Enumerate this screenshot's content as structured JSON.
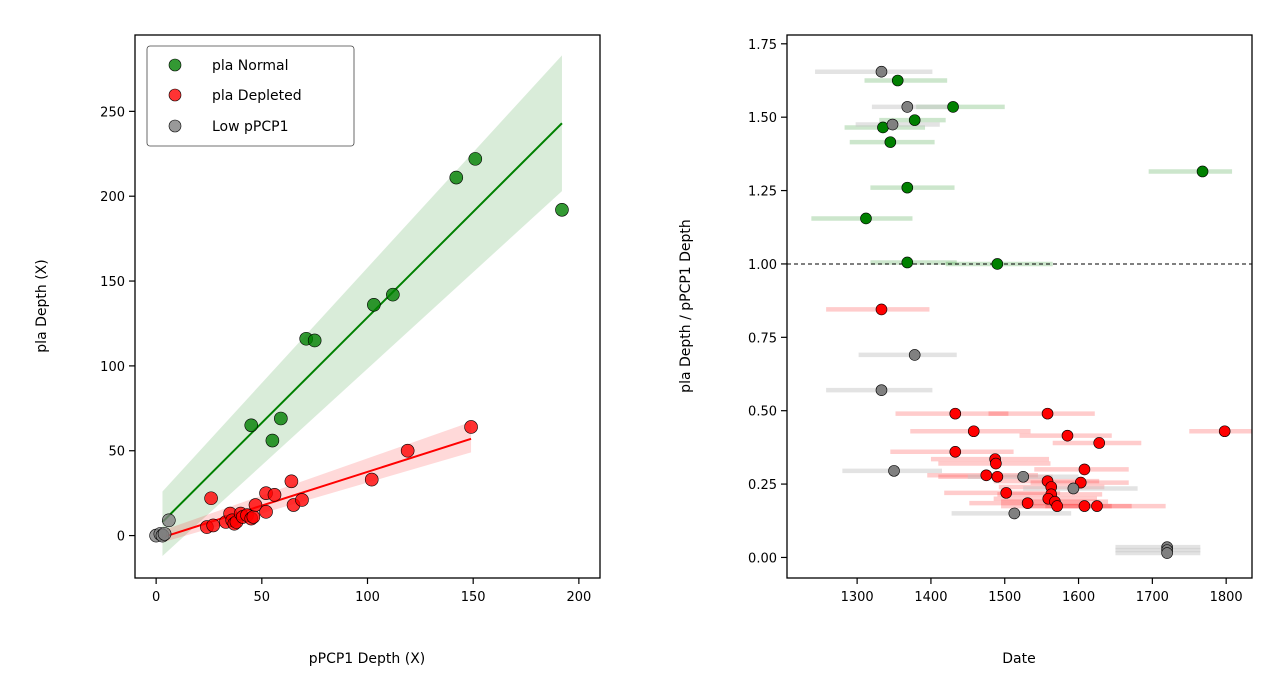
{
  "chart_data": [
    {
      "type": "scatter",
      "title": "",
      "xlabel": "pPCP1 Depth (X)",
      "ylabel": "pla Depth (X)",
      "xlim": [
        -10,
        210
      ],
      "ylim": [
        -25,
        295
      ],
      "xticks": [
        0,
        50,
        100,
        150,
        200
      ],
      "yticks": [
        0,
        50,
        100,
        150,
        200,
        250
      ],
      "grid": false,
      "legend": {
        "position": "top-left",
        "entries": [
          {
            "label": "pla Normal",
            "color": "#008000"
          },
          {
            "label": "pla Depleted",
            "color": "#ff0000"
          },
          {
            "label": "Low pPCP1",
            "color": "#808080"
          }
        ]
      },
      "series": [
        {
          "name": "pla Normal",
          "color": "#008000",
          "points": [
            [
              45,
              65
            ],
            [
              55,
              56
            ],
            [
              59,
              69
            ],
            [
              71,
              116
            ],
            [
              75,
              115
            ],
            [
              103,
              136
            ],
            [
              112,
              142
            ],
            [
              142,
              211
            ],
            [
              151,
              222
            ],
            [
              192,
              192
            ]
          ],
          "fit": {
            "x": [
              3,
              192
            ],
            "y": [
              8,
              243
            ],
            "ci_upper": [
              26,
              283
            ],
            "ci_lower": [
              -12,
              203
            ]
          }
        },
        {
          "name": "pla Depleted",
          "color": "#ff0000",
          "points": [
            [
              24,
              5
            ],
            [
              26,
              22
            ],
            [
              27,
              6
            ],
            [
              33,
              8
            ],
            [
              35,
              13
            ],
            [
              36,
              9
            ],
            [
              37,
              7
            ],
            [
              38,
              8
            ],
            [
              40,
              13
            ],
            [
              41,
              11
            ],
            [
              43,
              12
            ],
            [
              45,
              10
            ],
            [
              46,
              11
            ],
            [
              47,
              18
            ],
            [
              52,
              14
            ],
            [
              52,
              25
            ],
            [
              56,
              24
            ],
            [
              64,
              32
            ],
            [
              65,
              18
            ],
            [
              69,
              21
            ],
            [
              102,
              33
            ],
            [
              119,
              50
            ],
            [
              149,
              64
            ]
          ],
          "fit": {
            "x": [
              3,
              149
            ],
            "y": [
              -1,
              57
            ],
            "ci_upper": [
              3,
              67
            ],
            "ci_lower": [
              -4,
              49
            ]
          }
        },
        {
          "name": "Low pPCP1",
          "color": "#808080",
          "points": [
            [
              0,
              0
            ],
            [
              2,
              1
            ],
            [
              3,
              0
            ],
            [
              4,
              1
            ],
            [
              6,
              9
            ]
          ]
        }
      ]
    },
    {
      "type": "scatter",
      "title": "",
      "xlabel": "Date",
      "ylabel": "pla Depth / pPCP1 Depth",
      "xlim": [
        1205,
        1835
      ],
      "ylim": [
        -0.07,
        1.78
      ],
      "xticks": [
        1300,
        1400,
        1500,
        1600,
        1700,
        1800
      ],
      "yticks": [
        0.0,
        0.25,
        0.5,
        0.75,
        1.0,
        1.25,
        1.5,
        1.75
      ],
      "yticklabels": [
        "0.00",
        "0.25",
        "0.50",
        "0.75",
        "1.00",
        "1.25",
        "1.50",
        "1.75"
      ],
      "grid": false,
      "reference_line": {
        "y": 1.0,
        "style": "dashed",
        "color": "#000000"
      },
      "series": [
        {
          "name": "pla Normal",
          "color": "#008000",
          "points": [
            {
              "x": 1355,
              "y": 1.625,
              "xmin": 1310,
              "xmax": 1422
            },
            {
              "x": 1430,
              "y": 1.535,
              "xmin": 1380,
              "xmax": 1500
            },
            {
              "x": 1378,
              "y": 1.49,
              "xmin": 1330,
              "xmax": 1420
            },
            {
              "x": 1335,
              "y": 1.465,
              "xmin": 1283,
              "xmax": 1392
            },
            {
              "x": 1345,
              "y": 1.415,
              "xmin": 1290,
              "xmax": 1405
            },
            {
              "x": 1768,
              "y": 1.315,
              "xmin": 1695,
              "xmax": 1808
            },
            {
              "x": 1368,
              "y": 1.26,
              "xmin": 1318,
              "xmax": 1432
            },
            {
              "x": 1312,
              "y": 1.155,
              "xmin": 1238,
              "xmax": 1375
            },
            {
              "x": 1368,
              "y": 1.005,
              "xmin": 1318,
              "xmax": 1435
            },
            {
              "x": 1490,
              "y": 1.0,
              "xmin": 1420,
              "xmax": 1565
            }
          ]
        },
        {
          "name": "pla Depleted",
          "color": "#ff0000",
          "points": [
            {
              "x": 1333,
              "y": 0.845,
              "xmin": 1258,
              "xmax": 1398
            },
            {
              "x": 1433,
              "y": 0.49,
              "xmin": 1352,
              "xmax": 1505
            },
            {
              "x": 1558,
              "y": 0.49,
              "xmin": 1478,
              "xmax": 1622
            },
            {
              "x": 1458,
              "y": 0.43,
              "xmin": 1372,
              "xmax": 1535
            },
            {
              "x": 1798,
              "y": 0.43,
              "xmin": 1750,
              "xmax": 1835
            },
            {
              "x": 1585,
              "y": 0.415,
              "xmin": 1520,
              "xmax": 1645
            },
            {
              "x": 1628,
              "y": 0.39,
              "xmin": 1565,
              "xmax": 1685
            },
            {
              "x": 1433,
              "y": 0.36,
              "xmin": 1345,
              "xmax": 1512
            },
            {
              "x": 1487,
              "y": 0.335,
              "xmin": 1400,
              "xmax": 1560
            },
            {
              "x": 1488,
              "y": 0.32,
              "xmin": 1410,
              "xmax": 1562
            },
            {
              "x": 1608,
              "y": 0.3,
              "xmin": 1540,
              "xmax": 1668
            },
            {
              "x": 1475,
              "y": 0.28,
              "xmin": 1395,
              "xmax": 1545
            },
            {
              "x": 1490,
              "y": 0.275,
              "xmin": 1410,
              "xmax": 1565
            },
            {
              "x": 1558,
              "y": 0.26,
              "xmin": 1485,
              "xmax": 1628
            },
            {
              "x": 1603,
              "y": 0.255,
              "xmin": 1535,
              "xmax": 1668
            },
            {
              "x": 1563,
              "y": 0.24,
              "xmin": 1492,
              "xmax": 1635
            },
            {
              "x": 1502,
              "y": 0.22,
              "xmin": 1418,
              "xmax": 1575
            },
            {
              "x": 1563,
              "y": 0.215,
              "xmin": 1490,
              "xmax": 1632
            },
            {
              "x": 1559,
              "y": 0.2,
              "xmin": 1485,
              "xmax": 1625
            },
            {
              "x": 1568,
              "y": 0.19,
              "xmin": 1495,
              "xmax": 1640
            },
            {
              "x": 1531,
              "y": 0.185,
              "xmin": 1452,
              "xmax": 1605
            },
            {
              "x": 1571,
              "y": 0.175,
              "xmin": 1495,
              "xmax": 1645
            },
            {
              "x": 1608,
              "y": 0.175,
              "xmin": 1535,
              "xmax": 1672
            },
            {
              "x": 1625,
              "y": 0.175,
              "xmin": 1555,
              "xmax": 1718
            }
          ]
        },
        {
          "name": "Low pPCP1",
          "color": "#808080",
          "points": [
            {
              "x": 1333,
              "y": 1.655,
              "xmin": 1243,
              "xmax": 1402
            },
            {
              "x": 1368,
              "y": 1.535,
              "xmin": 1320,
              "xmax": 1425
            },
            {
              "x": 1348,
              "y": 1.475,
              "xmin": 1298,
              "xmax": 1412
            },
            {
              "x": 1378,
              "y": 0.69,
              "xmin": 1302,
              "xmax": 1435
            },
            {
              "x": 1333,
              "y": 0.57,
              "xmin": 1258,
              "xmax": 1402
            },
            {
              "x": 1350,
              "y": 0.295,
              "xmin": 1280,
              "xmax": 1415
            },
            {
              "x": 1525,
              "y": 0.275,
              "xmin": 1450,
              "xmax": 1600
            },
            {
              "x": 1593,
              "y": 0.235,
              "xmin": 1525,
              "xmax": 1680
            },
            {
              "x": 1513,
              "y": 0.15,
              "xmin": 1428,
              "xmax": 1590
            },
            {
              "x": 1720,
              "y": 0.035,
              "xmin": 1650,
              "xmax": 1765
            },
            {
              "x": 1720,
              "y": 0.025,
              "xmin": 1650,
              "xmax": 1765
            },
            {
              "x": 1720,
              "y": 0.015,
              "xmin": 1650,
              "xmax": 1765
            }
          ]
        }
      ]
    }
  ]
}
